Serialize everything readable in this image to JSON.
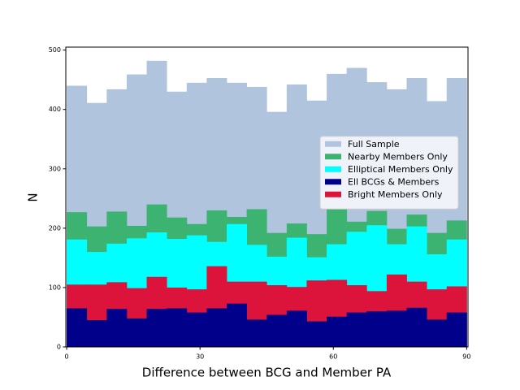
{
  "chart_data": {
    "type": "histogram",
    "xlabel": "Difference between BCG and Member PA",
    "ylabel": "N",
    "bins": [
      0,
      4.5,
      9,
      13.5,
      18,
      22.5,
      27,
      31.5,
      36,
      40.5,
      45,
      49.5,
      54,
      58.5,
      63,
      67.5,
      72,
      76.5,
      81,
      85.5,
      90
    ],
    "series": [
      {
        "name": "Full Sample",
        "color": "#b0c4de",
        "values": [
          440,
          411,
          434,
          459,
          482,
          430,
          445,
          453,
          445,
          438,
          396,
          442,
          415,
          460,
          470,
          446,
          434,
          453,
          414,
          453
        ]
      },
      {
        "name": "Nearby Members Only",
        "color": "#3cb371",
        "values": [
          227,
          203,
          228,
          204,
          240,
          218,
          207,
          230,
          219,
          232,
          192,
          208,
          190,
          233,
          211,
          229,
          199,
          223,
          192,
          213
        ]
      },
      {
        "name": "Elliptical Members Only",
        "color": "#00ffff",
        "values": [
          181,
          160,
          174,
          183,
          193,
          182,
          188,
          177,
          207,
          172,
          152,
          184,
          151,
          173,
          194,
          205,
          173,
          203,
          156,
          181
        ]
      },
      {
        "name": "Ell BCGs & Members",
        "color": "#00008b",
        "values": [
          65,
          45,
          64,
          48,
          64,
          65,
          58,
          65,
          73,
          46,
          54,
          61,
          43,
          51,
          58,
          60,
          61,
          66,
          46,
          58
        ]
      },
      {
        "name": "Bright Members Only",
        "color": "#dc143c",
        "values": [
          105,
          105,
          109,
          99,
          118,
          100,
          97,
          136,
          110,
          110,
          104,
          101,
          112,
          113,
          104,
          94,
          122,
          110,
          97,
          102
        ]
      }
    ],
    "xlim": [
      -0.2,
      90.3
    ],
    "xticks": [
      0,
      30,
      60,
      90
    ],
    "ylim": [
      0,
      505
    ],
    "yticks": [
      0,
      100,
      200,
      300,
      400,
      500
    ],
    "legend": "center right"
  }
}
